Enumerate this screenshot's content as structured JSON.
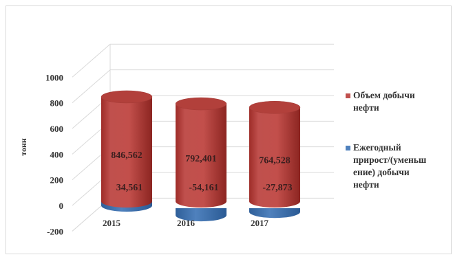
{
  "chart_data": {
    "type": "bar",
    "style": "3d-cylinder",
    "categories": [
      "2015",
      "2016",
      "2017"
    ],
    "series": [
      {
        "name": "Объем добычи нефти",
        "values": [
          846562,
          792401,
          764528
        ],
        "labels": [
          "846,562",
          "792,401",
          "764,528"
        ],
        "color": "#c0504d"
      },
      {
        "name": "Ежегодный прирост/(уменьшение) добычи нефти",
        "values": [
          34561,
          -54161,
          -27873
        ],
        "labels": [
          "34,561",
          "-54,161",
          "-27,873"
        ],
        "color": "#4f81bd"
      }
    ],
    "ylabel": "тонн",
    "yticks": [
      "1000",
      "800",
      "600",
      "400",
      "200",
      "0",
      "-200"
    ],
    "ylim": [
      -200,
      1000
    ],
    "grid": true,
    "legend_position": "right"
  },
  "legend": {
    "item1_lines": [
      "Объем добычи",
      "нефти"
    ],
    "item2_lines": [
      "Ежегодный",
      "прирост/(уменьш",
      "ение) добычи",
      "нефти"
    ]
  }
}
